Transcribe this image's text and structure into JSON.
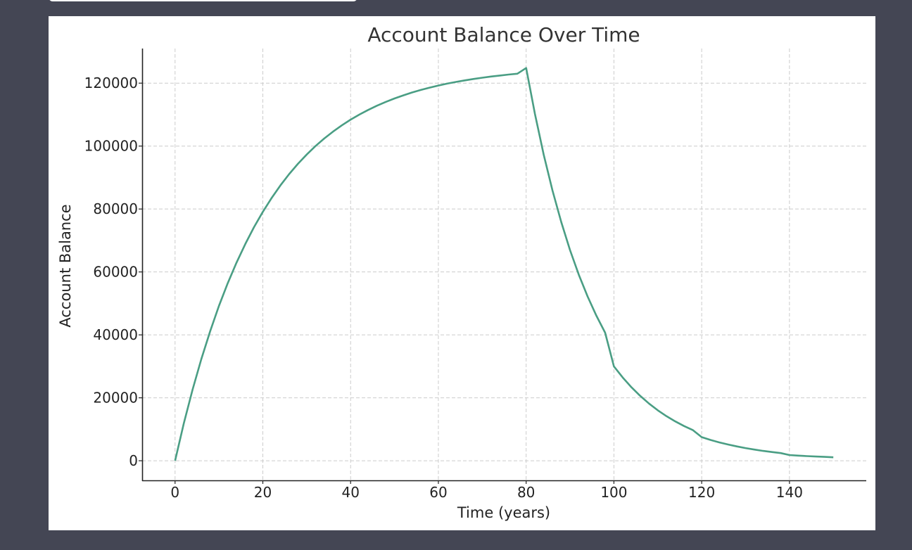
{
  "chart_data": {
    "type": "line",
    "title": "Account Balance Over Time",
    "xlabel": "Time (years)",
    "ylabel": "Account Balance",
    "xlim": [
      -7.5,
      157.5
    ],
    "ylim": [
      -6240,
      131000
    ],
    "xticks": [
      0,
      20,
      40,
      60,
      80,
      100,
      120,
      140
    ],
    "yticks": [
      0,
      20000,
      40000,
      60000,
      80000,
      100000,
      120000
    ],
    "xtick_labels": [
      "0",
      "20",
      "40",
      "60",
      "80",
      "100",
      "120",
      "140"
    ],
    "ytick_labels": [
      "0",
      "20000",
      "40000",
      "60000",
      "80000",
      "100000",
      "120000"
    ],
    "grid": true,
    "series": [
      {
        "color": "#4a9e84",
        "x": [
          0,
          2,
          4,
          6,
          8,
          10,
          12,
          14,
          16,
          18,
          20,
          22,
          24,
          26,
          28,
          30,
          32,
          34,
          36,
          38,
          40,
          42,
          44,
          46,
          48,
          50,
          52,
          54,
          56,
          58,
          60,
          62,
          64,
          66,
          68,
          70,
          72,
          74,
          76,
          78,
          80,
          82,
          84,
          86,
          88,
          90,
          92,
          94,
          96,
          98,
          100,
          102,
          104,
          106,
          108,
          110,
          112,
          114,
          116,
          118,
          120,
          122,
          124,
          126,
          128,
          130,
          132,
          134,
          136,
          138,
          140,
          142,
          144,
          146,
          148,
          150
        ],
        "values": [
          0,
          11882,
          22640,
          32381,
          41200,
          49185,
          56414,
          62960,
          68886,
          74252,
          79110,
          83508,
          87491,
          91096,
          94361,
          97316,
          99993,
          102416,
          104609,
          106595,
          108394,
          110022,
          111496,
          112831,
          114039,
          115133,
          116124,
          117021,
          117833,
          118568,
          119234,
          119837,
          120383,
          120877,
          121324,
          121729,
          122096,
          122428,
          122729,
          123000,
          124800,
          110190,
          97290,
          85900,
          75840,
          66960,
          59120,
          52200,
          46090,
          40690,
          30000,
          26460,
          23340,
          20600,
          18170,
          16030,
          14140,
          12480,
          11010,
          9710,
          7500,
          6620,
          5840,
          5150,
          4550,
          4010,
          3540,
          3120,
          2760,
          2430,
          1800,
          1630,
          1480,
          1340,
          1220,
          1100
        ]
      }
    ]
  }
}
